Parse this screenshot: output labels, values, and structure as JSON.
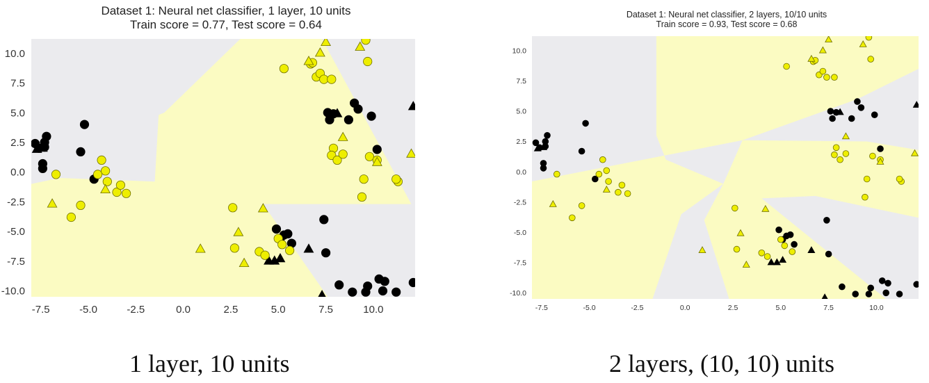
{
  "chart_data": [
    {
      "type": "scatter",
      "title": "Dataset 1: Neural net classifier, 1 layer, 10 units",
      "subtitle": "Train score = 0.77, Test score = 0.64",
      "xlim": [
        -8.0,
        12.2
      ],
      "ylim": [
        -10.5,
        11.2
      ],
      "x_ticks": [
        "-7.5",
        "-5.0",
        "-2.5",
        "0.0",
        "2.5",
        "5.0",
        "7.5",
        "10.0"
      ],
      "y_ticks": [
        "10.0",
        "7.5",
        "5.0",
        "2.5",
        "0.0",
        "-2.5",
        "-5.0",
        "-7.5",
        "-10.0"
      ],
      "grid": false,
      "colors": {
        "class_0": "#000000",
        "class_1": "#eeee00",
        "region_0": "#ebebee",
        "region_1": "#fbfbc2"
      },
      "decision_region_class1": [
        [
          3.0,
          11.2
        ],
        [
          7.3,
          11.2
        ],
        [
          12.0,
          -2.7
        ],
        [
          4.2,
          -2.7
        ],
        [
          7.6,
          -10.5
        ],
        [
          -8.0,
          -10.5
        ],
        [
          -8.0,
          -1.0
        ],
        [
          -6.5,
          -0.5
        ],
        [
          -1.5,
          -0.8
        ],
        [
          -1.3,
          4.8
        ],
        [
          -1.0,
          5.0
        ]
      ],
      "series": [
        {
          "class": 0,
          "marker": "circle",
          "points": [
            [
              -7.8,
              2.4
            ],
            [
              -7.3,
              2.5
            ],
            [
              -7.2,
              3.0
            ],
            [
              -7.3,
              2.1
            ],
            [
              -7.6,
              2.0
            ],
            [
              -7.4,
              0.7
            ],
            [
              -7.4,
              0.3
            ],
            [
              -5.2,
              4.0
            ],
            [
              -5.4,
              1.7
            ],
            [
              -4.7,
              -0.6
            ],
            [
              7.6,
              5.0
            ],
            [
              7.9,
              4.9
            ],
            [
              7.7,
              4.4
            ],
            [
              8.7,
              4.4
            ],
            [
              9.0,
              5.8
            ],
            [
              9.2,
              5.3
            ],
            [
              9.9,
              4.7
            ],
            [
              10.2,
              1.9
            ],
            [
              4.9,
              -4.8
            ],
            [
              5.3,
              -5.3
            ],
            [
              5.5,
              -5.2
            ],
            [
              5.1,
              -5.6
            ],
            [
              5.7,
              -6.0
            ],
            [
              7.4,
              -4.0
            ],
            [
              7.5,
              -6.8
            ],
            [
              8.2,
              -9.5
            ],
            [
              8.9,
              -10.1
            ],
            [
              9.6,
              -10.1
            ],
            [
              9.7,
              -9.6
            ],
            [
              10.3,
              -9.0
            ],
            [
              10.6,
              -9.2
            ],
            [
              10.5,
              -10.0
            ],
            [
              11.2,
              -10.1
            ],
            [
              12.1,
              -9.3
            ]
          ]
        },
        {
          "class": 0,
          "marker": "triangle",
          "points": [
            [
              -7.7,
              1.9
            ],
            [
              -7.4,
              2.0
            ],
            [
              8.1,
              4.9
            ],
            [
              12.1,
              5.5
            ],
            [
              4.5,
              -7.5
            ],
            [
              4.8,
              -7.5
            ],
            [
              5.1,
              -7.3
            ],
            [
              6.6,
              -6.5
            ],
            [
              7.3,
              -10.4
            ]
          ]
        },
        {
          "class": 1,
          "marker": "circle",
          "points": [
            [
              -6.7,
              -0.2
            ],
            [
              -4.3,
              1.0
            ],
            [
              -4.5,
              -0.2
            ],
            [
              -4.1,
              0.1
            ],
            [
              -4.0,
              -0.8
            ],
            [
              -3.5,
              -1.7
            ],
            [
              -3.3,
              -1.1
            ],
            [
              -3.0,
              -1.8
            ],
            [
              -5.4,
              -2.8
            ],
            [
              -5.9,
              -3.8
            ],
            [
              5.3,
              8.7
            ],
            [
              6.7,
              9.1
            ],
            [
              6.8,
              9.2
            ],
            [
              7.0,
              8.0
            ],
            [
              7.2,
              8.3
            ],
            [
              7.4,
              7.8
            ],
            [
              7.8,
              7.8
            ],
            [
              9.6,
              11.1
            ],
            [
              9.7,
              9.3
            ],
            [
              7.9,
              2.0
            ],
            [
              7.8,
              1.4
            ],
            [
              8.1,
              1.0
            ],
            [
              8.4,
              1.5
            ],
            [
              9.8,
              1.3
            ],
            [
              10.2,
              1.0
            ],
            [
              9.5,
              -0.6
            ],
            [
              9.4,
              -2.1
            ],
            [
              11.3,
              -0.8
            ],
            [
              11.2,
              -0.6
            ],
            [
              2.6,
              -3.0
            ],
            [
              2.7,
              -6.4
            ],
            [
              4.0,
              -6.7
            ],
            [
              4.3,
              -7.0
            ],
            [
              5.0,
              -5.6
            ],
            [
              5.2,
              -6.1
            ],
            [
              5.6,
              -6.6
            ]
          ]
        },
        {
          "class": 1,
          "marker": "triangle",
          "points": [
            [
              -6.9,
              -2.7
            ],
            [
              -4.1,
              -1.5
            ],
            [
              6.6,
              9.3
            ],
            [
              7.2,
              10.0
            ],
            [
              7.5,
              10.9
            ],
            [
              9.3,
              10.5
            ],
            [
              8.4,
              2.9
            ],
            [
              10.2,
              0.8
            ],
            [
              12.0,
              1.5
            ],
            [
              0.9,
              -6.5
            ],
            [
              2.9,
              -5.1
            ],
            [
              3.2,
              -7.7
            ],
            [
              4.2,
              -3.1
            ]
          ]
        }
      ]
    },
    {
      "type": "scatter",
      "title": "Dataset 1: Neural net classifier, 2 layers, 10/10 units",
      "subtitle": "Train score = 0.93, Test score = 0.68",
      "xlim": [
        -8.0,
        12.2
      ],
      "ylim": [
        -10.5,
        11.2
      ],
      "x_ticks": [
        "-7.5",
        "-5.0",
        "-2.5",
        "0.0",
        "2.5",
        "5.0",
        "7.5",
        "10.0"
      ],
      "y_ticks": [
        "10.0",
        "7.5",
        "5.0",
        "2.5",
        "0.0",
        "-2.5",
        "-5.0",
        "-7.5",
        "-10.0"
      ],
      "grid": false,
      "colors": {
        "class_0": "#000000",
        "class_1": "#eeee00",
        "region_0": "#ebebee",
        "region_1": "#fbfbc2"
      },
      "decision_regions_class1": [
        [
          [
            -1.5,
            11.2
          ],
          [
            12.2,
            11.2
          ],
          [
            12.2,
            8.5
          ],
          [
            9.0,
            6.0
          ],
          [
            3.0,
            2.6
          ],
          [
            -8.0,
            -0.8
          ],
          [
            -8.0,
            -10.5
          ],
          [
            -1.7,
            -10.5
          ],
          [
            -0.2,
            -3.5
          ],
          [
            2.0,
            -1.0
          ],
          [
            -1.0,
            1.0
          ],
          [
            -1.5,
            3.0
          ]
        ],
        [
          [
            3.0,
            2.6
          ],
          [
            9.5,
            2.5
          ],
          [
            12.2,
            1.8
          ],
          [
            12.2,
            -3.8
          ],
          [
            6.8,
            -2.0
          ],
          [
            4.0,
            -2.2
          ],
          [
            10.5,
            -10.5
          ],
          [
            2.3,
            -10.5
          ],
          [
            1.0,
            -4.0
          ],
          [
            2.0,
            -1.0
          ]
        ]
      ],
      "series": [
        {
          "class": 0,
          "marker": "circle",
          "points": [
            [
              -7.8,
              2.4
            ],
            [
              -7.3,
              2.5
            ],
            [
              -7.2,
              3.0
            ],
            [
              -7.3,
              2.1
            ],
            [
              -7.6,
              2.0
            ],
            [
              -7.4,
              0.7
            ],
            [
              -7.4,
              0.3
            ],
            [
              -5.2,
              4.0
            ],
            [
              -5.4,
              1.7
            ],
            [
              -4.7,
              -0.6
            ],
            [
              7.6,
              5.0
            ],
            [
              7.9,
              4.9
            ],
            [
              7.7,
              4.4
            ],
            [
              8.7,
              4.4
            ],
            [
              9.0,
              5.8
            ],
            [
              9.2,
              5.3
            ],
            [
              9.9,
              4.7
            ],
            [
              10.2,
              1.9
            ],
            [
              4.9,
              -4.8
            ],
            [
              5.3,
              -5.3
            ],
            [
              5.5,
              -5.2
            ],
            [
              5.1,
              -5.6
            ],
            [
              5.7,
              -6.0
            ],
            [
              7.4,
              -4.0
            ],
            [
              7.5,
              -6.8
            ],
            [
              8.2,
              -9.5
            ],
            [
              8.9,
              -10.1
            ],
            [
              9.6,
              -10.1
            ],
            [
              9.7,
              -9.6
            ],
            [
              10.3,
              -9.0
            ],
            [
              10.6,
              -9.2
            ],
            [
              10.5,
              -10.0
            ],
            [
              11.2,
              -10.1
            ],
            [
              12.1,
              -9.3
            ]
          ]
        },
        {
          "class": 0,
          "marker": "triangle",
          "points": [
            [
              -7.7,
              1.9
            ],
            [
              -7.4,
              2.0
            ],
            [
              8.1,
              4.9
            ],
            [
              12.1,
              5.5
            ],
            [
              4.5,
              -7.5
            ],
            [
              4.8,
              -7.5
            ],
            [
              5.1,
              -7.3
            ],
            [
              6.6,
              -6.5
            ],
            [
              7.3,
              -10.4
            ]
          ]
        },
        {
          "class": 1,
          "marker": "circle",
          "points": [
            [
              -6.7,
              -0.2
            ],
            [
              -4.3,
              1.0
            ],
            [
              -4.5,
              -0.2
            ],
            [
              -4.1,
              0.1
            ],
            [
              -4.0,
              -0.8
            ],
            [
              -3.5,
              -1.7
            ],
            [
              -3.3,
              -1.1
            ],
            [
              -3.0,
              -1.8
            ],
            [
              -5.4,
              -2.8
            ],
            [
              -5.9,
              -3.8
            ],
            [
              5.3,
              8.7
            ],
            [
              6.7,
              9.1
            ],
            [
              6.8,
              9.2
            ],
            [
              7.0,
              8.0
            ],
            [
              7.2,
              8.3
            ],
            [
              7.4,
              7.8
            ],
            [
              7.8,
              7.8
            ],
            [
              9.6,
              11.1
            ],
            [
              9.7,
              9.3
            ],
            [
              7.9,
              2.0
            ],
            [
              7.8,
              1.4
            ],
            [
              8.1,
              1.0
            ],
            [
              8.4,
              1.5
            ],
            [
              9.8,
              1.3
            ],
            [
              10.2,
              1.0
            ],
            [
              9.5,
              -0.6
            ],
            [
              9.4,
              -2.1
            ],
            [
              11.3,
              -0.8
            ],
            [
              11.2,
              -0.6
            ],
            [
              2.6,
              -3.0
            ],
            [
              2.7,
              -6.4
            ],
            [
              4.0,
              -6.7
            ],
            [
              4.3,
              -7.0
            ],
            [
              5.0,
              -5.6
            ],
            [
              5.2,
              -6.1
            ],
            [
              5.6,
              -6.6
            ]
          ]
        },
        {
          "class": 1,
          "marker": "triangle",
          "points": [
            [
              -6.9,
              -2.7
            ],
            [
              -4.1,
              -1.5
            ],
            [
              6.6,
              9.3
            ],
            [
              7.2,
              10.0
            ],
            [
              7.5,
              10.9
            ],
            [
              9.3,
              10.5
            ],
            [
              8.4,
              2.9
            ],
            [
              10.2,
              0.8
            ],
            [
              12.0,
              1.5
            ],
            [
              0.9,
              -6.5
            ],
            [
              2.9,
              -5.1
            ],
            [
              3.2,
              -7.7
            ],
            [
              4.2,
              -3.1
            ]
          ]
        }
      ]
    }
  ],
  "captions": [
    "1 layer, 10 units",
    "2 layers, (10, 10) units"
  ]
}
